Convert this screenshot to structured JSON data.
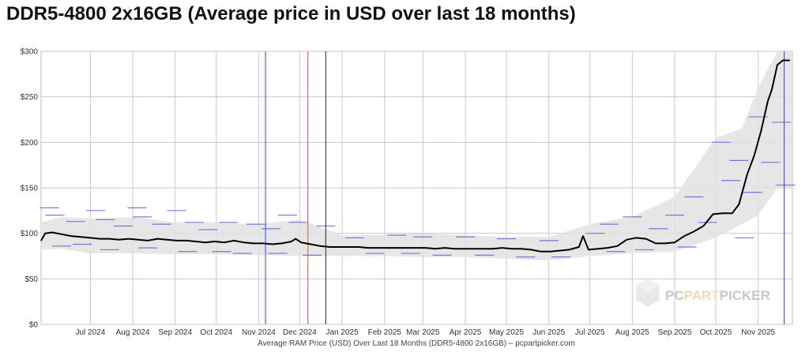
{
  "page": {
    "title": "DDR5-4800 2x16GB (Average price in USD over last 18 months)"
  },
  "chart_data": {
    "type": "line",
    "title": "DDR5-4800 2x16GB (Average price in USD over last 18 months)",
    "xlabel": "Average RAM Price (USD) Over Last 18 Months (DDR5-4800 2x16GB) – pcpartpicker.com",
    "ylabel": "",
    "x_range": [
      "2024-05-26",
      "2025-11-26"
    ],
    "ylim": [
      0,
      300
    ],
    "y_ticks": [
      {
        "value": 0,
        "label": "$0"
      },
      {
        "value": 50,
        "label": "$50"
      },
      {
        "value": 100,
        "label": "$100"
      },
      {
        "value": 150,
        "label": "$150"
      },
      {
        "value": 200,
        "label": "$200"
      },
      {
        "value": 250,
        "label": "$250"
      },
      {
        "value": 300,
        "label": "$300"
      }
    ],
    "x_ticks": [
      {
        "date": "2024-07-01",
        "label": "Jul 2024"
      },
      {
        "date": "2024-08-01",
        "label": "Aug 2024"
      },
      {
        "date": "2024-09-01",
        "label": "Sep 2024"
      },
      {
        "date": "2024-10-01",
        "label": "Oct 2024"
      },
      {
        "date": "2024-11-01",
        "label": "Nov 2024"
      },
      {
        "date": "2024-12-01",
        "label": "Dec 2024"
      },
      {
        "date": "2025-01-01",
        "label": "Jan 2025"
      },
      {
        "date": "2025-02-01",
        "label": "Feb 2025"
      },
      {
        "date": "2025-03-01",
        "label": "Mar 2025"
      },
      {
        "date": "2025-04-01",
        "label": "Apr 2025"
      },
      {
        "date": "2025-05-01",
        "label": "May 2025"
      },
      {
        "date": "2025-06-01",
        "label": "Jun 2025"
      },
      {
        "date": "2025-07-01",
        "label": "Jul 2025"
      },
      {
        "date": "2025-08-01",
        "label": "Aug 2025"
      },
      {
        "date": "2025-09-01",
        "label": "Sep 2025"
      },
      {
        "date": "2025-10-01",
        "label": "Oct 2025"
      },
      {
        "date": "2025-11-01",
        "label": "Nov 2025"
      }
    ],
    "grid": true,
    "series": [
      {
        "color": "#000000",
        "points": [
          [
            "2024-05-26",
            92
          ],
          [
            "2024-05-29",
            100
          ],
          [
            "2024-06-03",
            101
          ],
          [
            "2024-06-10",
            99
          ],
          [
            "2024-06-17",
            97
          ],
          [
            "2024-06-24",
            96
          ],
          [
            "2024-07-01",
            95
          ],
          [
            "2024-07-08",
            94
          ],
          [
            "2024-07-15",
            94
          ],
          [
            "2024-07-22",
            93
          ],
          [
            "2024-07-29",
            94
          ],
          [
            "2024-08-05",
            93
          ],
          [
            "2024-08-12",
            92
          ],
          [
            "2024-08-19",
            94
          ],
          [
            "2024-08-26",
            93
          ],
          [
            "2024-09-02",
            92
          ],
          [
            "2024-09-09",
            92
          ],
          [
            "2024-09-16",
            91
          ],
          [
            "2024-09-23",
            90
          ],
          [
            "2024-09-30",
            91
          ],
          [
            "2024-10-07",
            90
          ],
          [
            "2024-10-14",
            92
          ],
          [
            "2024-10-21",
            90
          ],
          [
            "2024-10-28",
            89
          ],
          [
            "2024-11-04",
            89
          ],
          [
            "2024-11-11",
            88
          ],
          [
            "2024-11-18",
            89
          ],
          [
            "2024-11-25",
            91
          ],
          [
            "2024-11-28",
            94
          ],
          [
            "2024-12-02",
            90
          ],
          [
            "2024-12-09",
            88
          ],
          [
            "2024-12-16",
            86
          ],
          [
            "2024-12-23",
            85
          ],
          [
            "2024-12-30",
            85
          ],
          [
            "2025-01-06",
            85
          ],
          [
            "2025-01-13",
            85
          ],
          [
            "2025-01-20",
            84
          ],
          [
            "2025-01-27",
            84
          ],
          [
            "2025-02-03",
            84
          ],
          [
            "2025-02-10",
            84
          ],
          [
            "2025-02-17",
            84
          ],
          [
            "2025-02-24",
            84
          ],
          [
            "2025-03-03",
            84
          ],
          [
            "2025-03-10",
            83
          ],
          [
            "2025-03-17",
            84
          ],
          [
            "2025-03-24",
            83
          ],
          [
            "2025-03-31",
            83
          ],
          [
            "2025-04-07",
            83
          ],
          [
            "2025-04-14",
            83
          ],
          [
            "2025-04-21",
            83
          ],
          [
            "2025-04-28",
            84
          ],
          [
            "2025-05-05",
            83
          ],
          [
            "2025-05-12",
            83
          ],
          [
            "2025-05-19",
            82
          ],
          [
            "2025-05-26",
            80
          ],
          [
            "2025-06-02",
            80
          ],
          [
            "2025-06-09",
            81
          ],
          [
            "2025-06-16",
            82
          ],
          [
            "2025-06-23",
            85
          ],
          [
            "2025-06-26",
            97
          ],
          [
            "2025-06-30",
            82
          ],
          [
            "2025-07-07",
            83
          ],
          [
            "2025-07-14",
            84
          ],
          [
            "2025-07-21",
            86
          ],
          [
            "2025-07-28",
            93
          ],
          [
            "2025-08-04",
            95
          ],
          [
            "2025-08-11",
            94
          ],
          [
            "2025-08-18",
            89
          ],
          [
            "2025-08-25",
            89
          ],
          [
            "2025-09-01",
            90
          ],
          [
            "2025-09-08",
            97
          ],
          [
            "2025-09-15",
            102
          ],
          [
            "2025-09-22",
            108
          ],
          [
            "2025-09-29",
            121
          ],
          [
            "2025-10-06",
            122
          ],
          [
            "2025-10-13",
            122
          ],
          [
            "2025-10-18",
            132
          ],
          [
            "2025-10-24",
            165
          ],
          [
            "2025-10-29",
            185
          ],
          [
            "2025-11-03",
            212
          ],
          [
            "2025-11-08",
            245
          ],
          [
            "2025-11-11",
            258
          ],
          [
            "2025-11-15",
            285
          ],
          [
            "2025-11-19",
            290
          ],
          [
            "2025-11-24",
            290
          ]
        ]
      }
    ],
    "reference_lines": [
      {
        "date": "2024-11-06",
        "color": "#3a3ae0"
      },
      {
        "date": "2024-12-07",
        "color": "#e04b3a"
      },
      {
        "date": "2024-12-20",
        "color": "#222222"
      },
      {
        "date": "2025-11-20",
        "color": "#3a3ae0"
      }
    ],
    "band": {
      "color": "#e2e2e2",
      "points": [
        [
          "2024-05-26",
          82,
          112
        ],
        [
          "2024-06-10",
          83,
          118
        ],
        [
          "2024-07-01",
          78,
          116
        ],
        [
          "2024-08-01",
          78,
          118
        ],
        [
          "2024-09-01",
          77,
          112
        ],
        [
          "2024-10-01",
          77,
          112
        ],
        [
          "2024-11-01",
          76,
          110
        ],
        [
          "2024-12-01",
          75,
          115
        ],
        [
          "2025-01-01",
          75,
          98
        ],
        [
          "2025-02-01",
          75,
          98
        ],
        [
          "2025-03-01",
          74,
          100
        ],
        [
          "2025-04-01",
          74,
          98
        ],
        [
          "2025-05-01",
          72,
          96
        ],
        [
          "2025-06-01",
          70,
          96
        ],
        [
          "2025-07-01",
          75,
          110
        ],
        [
          "2025-08-01",
          78,
          118
        ],
        [
          "2025-09-01",
          80,
          140
        ],
        [
          "2025-10-01",
          95,
          205
        ],
        [
          "2025-10-20",
          110,
          215
        ],
        [
          "2025-11-01",
          120,
          260
        ],
        [
          "2025-11-15",
          150,
          300
        ],
        [
          "2025-11-26",
          150,
          300
        ]
      ]
    },
    "range_marks": {
      "color": "#5a5ad0",
      "points": [
        [
          "2024-06-01",
          128
        ],
        [
          "2024-06-05",
          120
        ],
        [
          "2024-06-10",
          86
        ],
        [
          "2024-06-20",
          113
        ],
        [
          "2024-06-25",
          88
        ],
        [
          "2024-07-05",
          125
        ],
        [
          "2024-07-12",
          115
        ],
        [
          "2024-07-15",
          82
        ],
        [
          "2024-07-25",
          108
        ],
        [
          "2024-08-04",
          128
        ],
        [
          "2024-08-08",
          118
        ],
        [
          "2024-08-12",
          84
        ],
        [
          "2024-08-22",
          110
        ],
        [
          "2024-09-02",
          125
        ],
        [
          "2024-09-10",
          80
        ],
        [
          "2024-09-15",
          112
        ],
        [
          "2024-09-25",
          104
        ],
        [
          "2024-10-05",
          80
        ],
        [
          "2024-10-10",
          112
        ],
        [
          "2024-10-20",
          78
        ],
        [
          "2024-10-30",
          110
        ],
        [
          "2024-11-10",
          105
        ],
        [
          "2024-11-15",
          78
        ],
        [
          "2024-11-22",
          120
        ],
        [
          "2024-11-30",
          112
        ],
        [
          "2024-12-10",
          76
        ],
        [
          "2024-12-20",
          108
        ],
        [
          "2025-01-10",
          95
        ],
        [
          "2025-01-25",
          78
        ],
        [
          "2025-02-10",
          98
        ],
        [
          "2025-02-20",
          78
        ],
        [
          "2025-03-01",
          96
        ],
        [
          "2025-03-15",
          76
        ],
        [
          "2025-04-01",
          96
        ],
        [
          "2025-04-15",
          76
        ],
        [
          "2025-05-01",
          94
        ],
        [
          "2025-05-15",
          74
        ],
        [
          "2025-06-01",
          92
        ],
        [
          "2025-06-10",
          74
        ],
        [
          "2025-07-05",
          100
        ],
        [
          "2025-07-15",
          110
        ],
        [
          "2025-07-20",
          80
        ],
        [
          "2025-08-01",
          118
        ],
        [
          "2025-08-10",
          82
        ],
        [
          "2025-08-20",
          105
        ],
        [
          "2025-09-01",
          120
        ],
        [
          "2025-09-10",
          85
        ],
        [
          "2025-09-15",
          140
        ],
        [
          "2025-09-25",
          112
        ],
        [
          "2025-10-05",
          200
        ],
        [
          "2025-10-12",
          158
        ],
        [
          "2025-10-18",
          180
        ],
        [
          "2025-10-22",
          95
        ],
        [
          "2025-10-28",
          145
        ],
        [
          "2025-11-01",
          228
        ],
        [
          "2025-11-10",
          178
        ],
        [
          "2025-11-18",
          222
        ],
        [
          "2025-11-21",
          153
        ]
      ]
    }
  }
}
